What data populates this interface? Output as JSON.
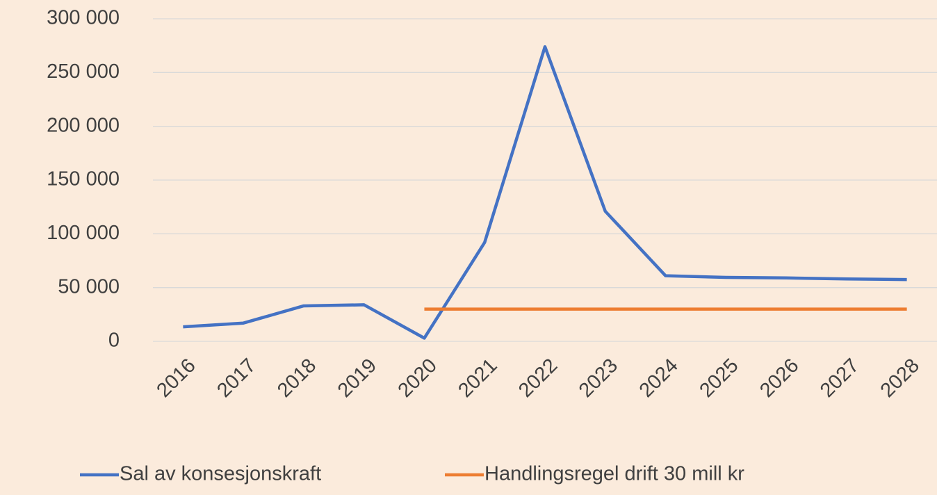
{
  "chart_data": {
    "type": "line",
    "categories": [
      "2016",
      "2017",
      "2018",
      "2019",
      "2020",
      "2021",
      "2022",
      "2023",
      "2024",
      "2025",
      "2026",
      "2027",
      "2028"
    ],
    "series": [
      {
        "name": "Sal av konsesjonskraft",
        "color": "#4472c4",
        "values": [
          13500,
          17000,
          33000,
          34000,
          3000,
          92000,
          274000,
          121000,
          61000,
          59500,
          59000,
          58000,
          57500
        ]
      },
      {
        "name": "Handlingsregel drift 30 mill kr",
        "color": "#ed7d31",
        "values": [
          null,
          null,
          null,
          null,
          30000,
          30000,
          30000,
          30000,
          30000,
          30000,
          30000,
          30000,
          30000
        ]
      }
    ],
    "ylim": [
      0,
      300000
    ],
    "yticks": [
      0,
      {
        "value": 50000,
        "label": "50 000"
      },
      {
        "value": 100000,
        "label": "100 000"
      },
      {
        "value": 150000,
        "label": "150 000"
      },
      {
        "value": 200000,
        "label": "200 000"
      },
      {
        "value": 250000,
        "label": "250 000"
      },
      {
        "value": 300000,
        "label": "300 000"
      }
    ],
    "grid": true,
    "legend": "bottom"
  }
}
